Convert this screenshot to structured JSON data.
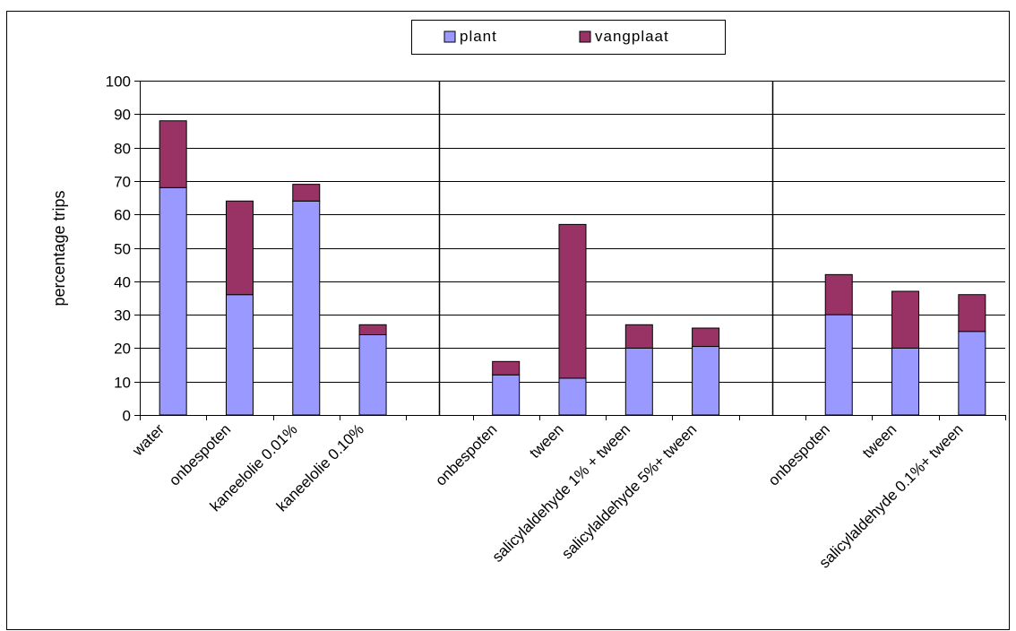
{
  "chart_data": {
    "type": "bar",
    "stacked": true,
    "ylabel": "percentage trips",
    "xlabel": "",
    "ylim": [
      0,
      100
    ],
    "ytick_step": 10,
    "grid": true,
    "legend_position": "top",
    "categories": [
      "water",
      "onbespoten",
      "kaneelolie 0.01%",
      "kaneelolie 0.10%",
      "",
      "onbespoten",
      "tween",
      "salicylaldehyde 1% + tween",
      "salicylaldehyde 5%+ tween",
      "",
      "onbespoten",
      "tween",
      "salicylaldehyde 0.1%+ tween"
    ],
    "series": [
      {
        "name": "plant",
        "color": "#9999ff",
        "values": [
          68,
          36,
          64,
          24,
          null,
          12,
          11,
          20,
          20.5,
          null,
          30,
          20,
          25
        ]
      },
      {
        "name": "vangplaat",
        "color": "#993366",
        "values": [
          20,
          28,
          5,
          3,
          null,
          4,
          46,
          7,
          5.5,
          null,
          12,
          17,
          11
        ]
      }
    ]
  }
}
